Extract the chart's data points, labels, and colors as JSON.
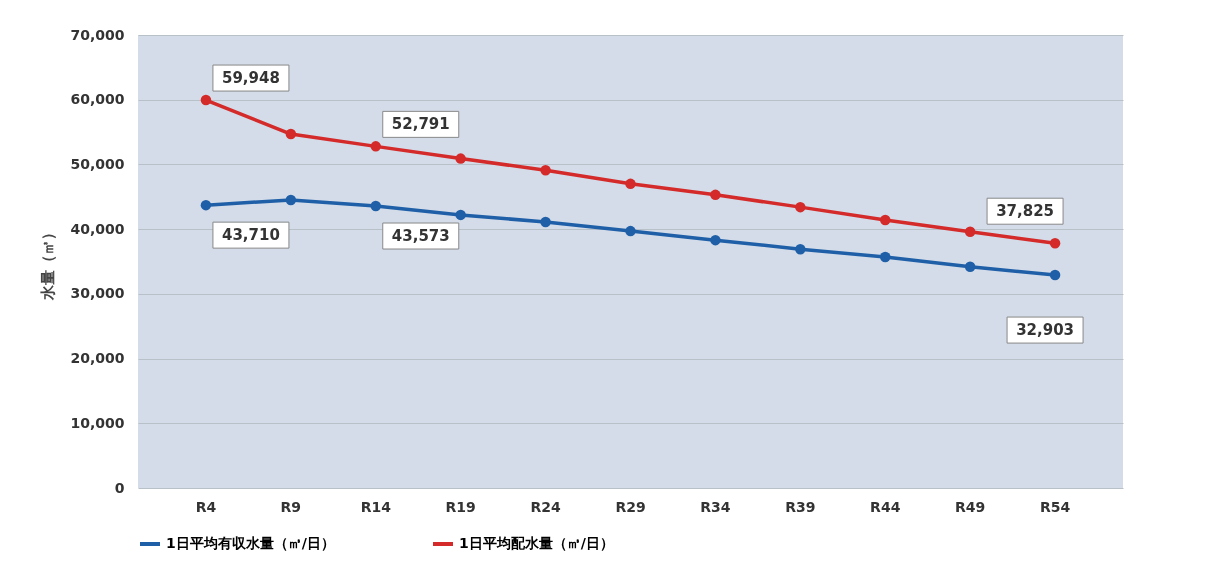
{
  "chart_data": {
    "type": "line",
    "ylabel": "水量（㎥）",
    "categories": [
      "R4",
      "R9",
      "R14",
      "R19",
      "R24",
      "R29",
      "R34",
      "R39",
      "R44",
      "R49",
      "R54"
    ],
    "series": [
      {
        "name": "1日平均有収水量（㎥/日）",
        "color": "#1f5fa8",
        "values": [
          43710,
          44500,
          43573,
          42200,
          41100,
          39700,
          38300,
          36900,
          35700,
          34200,
          32903
        ],
        "value_labels": [
          "43,710",
          null,
          "43,573",
          null,
          null,
          null,
          null,
          null,
          null,
          null,
          "32,903"
        ]
      },
      {
        "name": "1日平均配水量（㎥/日）",
        "color": "#d42a2a",
        "values": [
          59948,
          54700,
          52791,
          50900,
          49100,
          47000,
          45300,
          43400,
          41400,
          39600,
          37825
        ],
        "value_labels": [
          "59,948",
          null,
          "52,791",
          null,
          null,
          null,
          null,
          null,
          null,
          null,
          "37,825"
        ]
      }
    ],
    "ylim": [
      0,
      70000
    ],
    "yticks": [
      0,
      {
        "value": 10000,
        "label": "10,000"
      },
      {
        "value": 20000,
        "label": "20,000"
      },
      {
        "value": 30000,
        "label": "30,000"
      },
      {
        "value": 40000,
        "label": "40,000"
      },
      {
        "value": 50000,
        "label": "50,000"
      },
      {
        "value": 60000,
        "label": "60,000"
      },
      {
        "value": 70000,
        "label": "70,000"
      }
    ],
    "grid": "y",
    "legend": "bottom",
    "marker": "circle",
    "line_style": "solid"
  }
}
